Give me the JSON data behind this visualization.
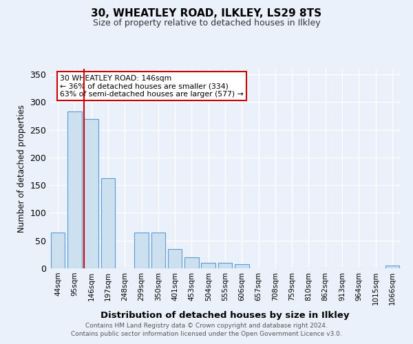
{
  "title1": "30, WHEATLEY ROAD, ILKLEY, LS29 8TS",
  "title2": "Size of property relative to detached houses in Ilkley",
  "xlabel": "Distribution of detached houses by size in Ilkley",
  "ylabel": "Number of detached properties",
  "categories": [
    "44sqm",
    "95sqm",
    "146sqm",
    "197sqm",
    "248sqm",
    "299sqm",
    "350sqm",
    "401sqm",
    "453sqm",
    "504sqm",
    "555sqm",
    "606sqm",
    "657sqm",
    "708sqm",
    "759sqm",
    "810sqm",
    "862sqm",
    "913sqm",
    "964sqm",
    "1015sqm",
    "1066sqm"
  ],
  "values": [
    65,
    283,
    270,
    163,
    0,
    65,
    65,
    35,
    20,
    10,
    10,
    8,
    0,
    0,
    0,
    0,
    0,
    0,
    0,
    0,
    5
  ],
  "bar_color": "#cce0f0",
  "bar_edge_color": "#5b9bd5",
  "highlight_index": 2,
  "highlight_line_color": "#cc0000",
  "annotation_text": "30 WHEATLEY ROAD: 146sqm\n← 36% of detached houses are smaller (334)\n63% of semi-detached houses are larger (577) →",
  "annotation_box_color": "#ffffff",
  "annotation_box_edge_color": "#cc0000",
  "ylim": [
    0,
    360
  ],
  "yticks": [
    0,
    50,
    100,
    150,
    200,
    250,
    300,
    350
  ],
  "background_color": "#eaf1fb",
  "plot_bg_color": "#eaf1fb",
  "grid_color": "#ffffff",
  "footer": "Contains HM Land Registry data © Crown copyright and database right 2024.\nContains public sector information licensed under the Open Government Licence v3.0."
}
